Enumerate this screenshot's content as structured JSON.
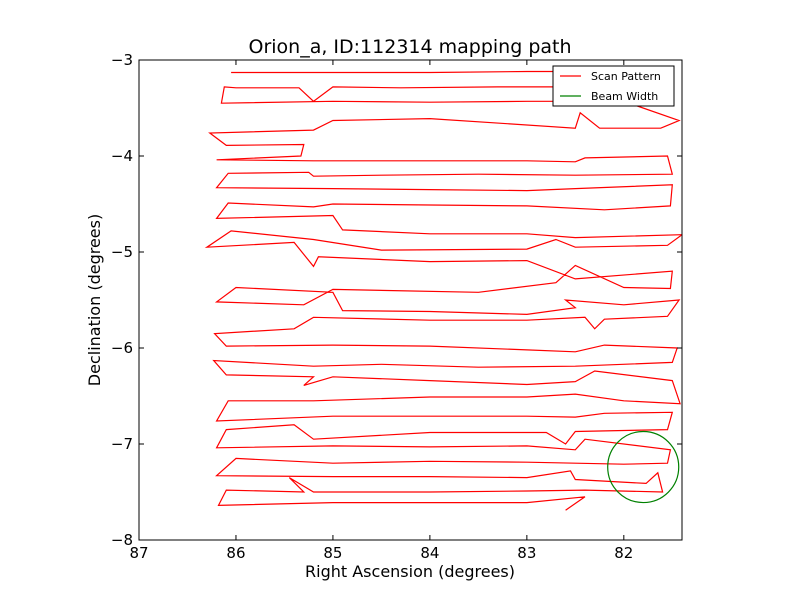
{
  "chart_data": {
    "type": "line",
    "title": "Orion_a, ID:112314 mapping path",
    "xlabel": "Right Ascension (degrees)",
    "ylabel": "Declination (degrees)",
    "xlim": [
      87,
      81.4
    ],
    "ylim": [
      -8,
      -3
    ],
    "x_inverted": true,
    "xticks": [
      87,
      86,
      85,
      84,
      83,
      82
    ],
    "xtick_labels": [
      "87",
      "86",
      "85",
      "84",
      "83",
      "82"
    ],
    "yticks": [
      -3,
      -4,
      -5,
      -6,
      -7,
      -8
    ],
    "ytick_labels": [
      "−3",
      "−4",
      "−5",
      "−6",
      "−7",
      "−8"
    ],
    "grid": false,
    "legend": {
      "position": "top-right",
      "entries": [
        {
          "label": "Scan Pattern",
          "color": "#ff0000"
        },
        {
          "label": "Beam Width",
          "color": "#008000"
        }
      ]
    },
    "series": [
      {
        "name": "Scan Pattern",
        "color": "#ff0000",
        "points": [
          [
            86.05,
            -3.13
          ],
          [
            85.0,
            -3.13
          ],
          [
            84.0,
            -3.13
          ],
          [
            83.0,
            -3.12
          ],
          [
            82.0,
            -3.12
          ],
          [
            81.58,
            -3.11
          ],
          [
            81.52,
            -3.27
          ],
          [
            82.3,
            -3.28
          ],
          [
            83.3,
            -3.28
          ],
          [
            84.3,
            -3.29
          ],
          [
            85.0,
            -3.28
          ],
          [
            85.2,
            -3.43
          ],
          [
            85.35,
            -3.29
          ],
          [
            86.0,
            -3.29
          ],
          [
            86.12,
            -3.28
          ],
          [
            86.15,
            -3.45
          ],
          [
            85.0,
            -3.43
          ],
          [
            84.0,
            -3.44
          ],
          [
            83.0,
            -3.43
          ],
          [
            82.0,
            -3.43
          ],
          [
            81.43,
            -3.63
          ],
          [
            81.62,
            -3.71
          ],
          [
            82.25,
            -3.71
          ],
          [
            82.45,
            -3.55
          ],
          [
            82.5,
            -3.71
          ],
          [
            84.0,
            -3.61
          ],
          [
            85.0,
            -3.63
          ],
          [
            85.2,
            -3.73
          ],
          [
            86.27,
            -3.76
          ],
          [
            86.1,
            -3.89
          ],
          [
            85.3,
            -3.88
          ],
          [
            85.33,
            -4.0
          ],
          [
            86.2,
            -4.04
          ],
          [
            85.2,
            -4.05
          ],
          [
            84.0,
            -4.05
          ],
          [
            83.0,
            -4.05
          ],
          [
            82.5,
            -4.06
          ],
          [
            82.4,
            -4.02
          ],
          [
            81.55,
            -4.0
          ],
          [
            81.5,
            -4.19
          ],
          [
            82.5,
            -4.2
          ],
          [
            83.5,
            -4.19
          ],
          [
            84.5,
            -4.2
          ],
          [
            85.2,
            -4.21
          ],
          [
            85.25,
            -4.17
          ],
          [
            86.08,
            -4.18
          ],
          [
            86.2,
            -4.33
          ],
          [
            85.0,
            -4.34
          ],
          [
            84.0,
            -4.35
          ],
          [
            83.0,
            -4.36
          ],
          [
            82.5,
            -4.34
          ],
          [
            81.5,
            -4.3
          ],
          [
            81.52,
            -4.52
          ],
          [
            82.2,
            -4.56
          ],
          [
            83.0,
            -4.52
          ],
          [
            84.0,
            -4.51
          ],
          [
            85.0,
            -4.5
          ],
          [
            85.2,
            -4.53
          ],
          [
            86.08,
            -4.49
          ],
          [
            86.2,
            -4.65
          ],
          [
            85.0,
            -4.62
          ],
          [
            84.9,
            -4.77
          ],
          [
            84.0,
            -4.81
          ],
          [
            83.0,
            -4.81
          ],
          [
            82.5,
            -4.85
          ],
          [
            81.4,
            -4.82
          ],
          [
            81.55,
            -4.93
          ],
          [
            82.5,
            -4.95
          ],
          [
            82.7,
            -4.87
          ],
          [
            83.0,
            -4.97
          ],
          [
            84.5,
            -4.98
          ],
          [
            85.2,
            -4.87
          ],
          [
            86.05,
            -4.78
          ],
          [
            86.3,
            -4.95
          ],
          [
            85.4,
            -4.9
          ],
          [
            85.2,
            -5.15
          ],
          [
            85.15,
            -5.05
          ],
          [
            84.0,
            -5.1
          ],
          [
            83.0,
            -5.09
          ],
          [
            82.5,
            -5.28
          ],
          [
            81.5,
            -5.2
          ],
          [
            81.52,
            -5.38
          ],
          [
            82.0,
            -5.37
          ],
          [
            82.5,
            -5.14
          ],
          [
            82.7,
            -5.32
          ],
          [
            83.5,
            -5.42
          ],
          [
            85.0,
            -5.39
          ],
          [
            85.3,
            -5.55
          ],
          [
            86.2,
            -5.52
          ],
          [
            86.0,
            -5.37
          ],
          [
            85.0,
            -5.42
          ],
          [
            84.9,
            -5.61
          ],
          [
            84.0,
            -5.62
          ],
          [
            83.0,
            -5.65
          ],
          [
            82.5,
            -5.58
          ],
          [
            82.6,
            -5.5
          ],
          [
            82.0,
            -5.55
          ],
          [
            81.43,
            -5.5
          ],
          [
            81.55,
            -5.67
          ],
          [
            82.2,
            -5.7
          ],
          [
            82.3,
            -5.8
          ],
          [
            82.4,
            -5.68
          ],
          [
            83.0,
            -5.71
          ],
          [
            84.0,
            -5.71
          ],
          [
            85.2,
            -5.68
          ],
          [
            85.4,
            -5.8
          ],
          [
            86.22,
            -5.85
          ],
          [
            86.1,
            -5.98
          ],
          [
            85.0,
            -5.97
          ],
          [
            84.0,
            -5.98
          ],
          [
            83.0,
            -6.02
          ],
          [
            82.5,
            -6.04
          ],
          [
            82.2,
            -5.97
          ],
          [
            81.45,
            -6.0
          ],
          [
            81.5,
            -6.15
          ],
          [
            82.5,
            -6.19
          ],
          [
            83.5,
            -6.2
          ],
          [
            84.5,
            -6.17
          ],
          [
            85.2,
            -6.19
          ],
          [
            86.23,
            -6.13
          ],
          [
            86.1,
            -6.28
          ],
          [
            85.2,
            -6.3
          ],
          [
            85.3,
            -6.39
          ],
          [
            85.0,
            -6.3
          ],
          [
            84.0,
            -6.34
          ],
          [
            83.0,
            -6.38
          ],
          [
            82.5,
            -6.35
          ],
          [
            82.3,
            -6.24
          ],
          [
            81.5,
            -6.34
          ],
          [
            81.42,
            -6.58
          ],
          [
            82.0,
            -6.55
          ],
          [
            82.5,
            -6.48
          ],
          [
            83.0,
            -6.51
          ],
          [
            84.0,
            -6.51
          ],
          [
            85.2,
            -6.55
          ],
          [
            86.08,
            -6.55
          ],
          [
            86.2,
            -6.76
          ],
          [
            85.0,
            -6.71
          ],
          [
            84.0,
            -6.71
          ],
          [
            83.0,
            -6.71
          ],
          [
            82.5,
            -6.72
          ],
          [
            82.2,
            -6.68
          ],
          [
            81.5,
            -6.67
          ],
          [
            81.55,
            -6.85
          ],
          [
            82.5,
            -6.87
          ],
          [
            82.6,
            -7.0
          ],
          [
            82.8,
            -6.88
          ],
          [
            84.0,
            -6.88
          ],
          [
            85.2,
            -6.95
          ],
          [
            85.4,
            -6.8
          ],
          [
            86.1,
            -6.85
          ],
          [
            86.2,
            -7.04
          ],
          [
            85.0,
            -7.02
          ],
          [
            84.0,
            -7.03
          ],
          [
            83.0,
            -7.02
          ],
          [
            82.5,
            -7.06
          ],
          [
            82.4,
            -6.95
          ],
          [
            81.52,
            -7.06
          ],
          [
            81.55,
            -7.2
          ],
          [
            82.0,
            -7.21
          ],
          [
            83.0,
            -7.19
          ],
          [
            84.0,
            -7.18
          ],
          [
            85.0,
            -7.2
          ],
          [
            86.0,
            -7.15
          ],
          [
            86.2,
            -7.33
          ],
          [
            85.0,
            -7.34
          ],
          [
            84.0,
            -7.34
          ],
          [
            83.0,
            -7.35
          ],
          [
            82.55,
            -7.28
          ],
          [
            82.5,
            -7.37
          ],
          [
            81.77,
            -7.41
          ],
          [
            81.65,
            -7.3
          ],
          [
            81.6,
            -7.5
          ],
          [
            82.4,
            -7.48
          ],
          [
            83.0,
            -7.49
          ],
          [
            84.0,
            -7.5
          ],
          [
            85.2,
            -7.5
          ],
          [
            85.45,
            -7.35
          ],
          [
            85.3,
            -7.5
          ],
          [
            86.1,
            -7.48
          ],
          [
            86.18,
            -7.64
          ],
          [
            85.0,
            -7.61
          ],
          [
            84.0,
            -7.61
          ],
          [
            83.0,
            -7.61
          ],
          [
            82.4,
            -7.55
          ],
          [
            82.6,
            -7.69
          ]
        ]
      },
      {
        "name": "Beam Width",
        "color": "#008000",
        "shape": "circle",
        "center": [
          81.8,
          -7.24
        ],
        "radius": 0.37
      }
    ]
  }
}
